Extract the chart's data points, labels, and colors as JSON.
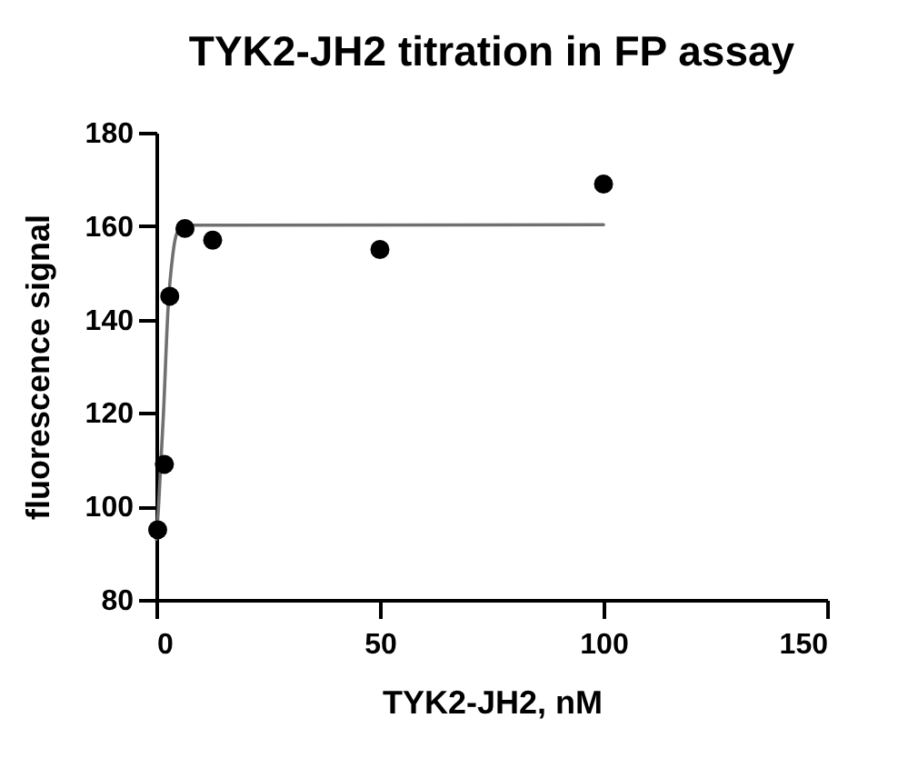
{
  "chart_data": {
    "type": "scatter",
    "title": "TYK2-JH2 titration in FP assay",
    "xlabel": "TYK2-JH2, nM",
    "ylabel": "fluorescence signal",
    "xlim": [
      0,
      150
    ],
    "xticks": [
      0,
      50,
      100,
      150
    ],
    "ylim": [
      80,
      180
    ],
    "yticks": [
      80,
      100,
      120,
      140,
      160,
      180
    ],
    "grid": false,
    "series": [
      {
        "type": "line",
        "color": "#707070",
        "line_style": "solid",
        "marker": "none",
        "x": [
          0,
          0.5,
          1.6,
          2.6,
          3.7,
          4.6,
          6.4,
          100
        ],
        "values": [
          93,
          100,
          120,
          142,
          154,
          158.5,
          160.2,
          160.3
        ]
      },
      {
        "color": "#000000",
        "marker": "circle",
        "x": [
          0.3,
          1.8,
          3.0,
          6.4,
          12.6,
          50,
          100
        ],
        "values": [
          95,
          109,
          145,
          159.5,
          157,
          155,
          169
        ]
      }
    ]
  }
}
